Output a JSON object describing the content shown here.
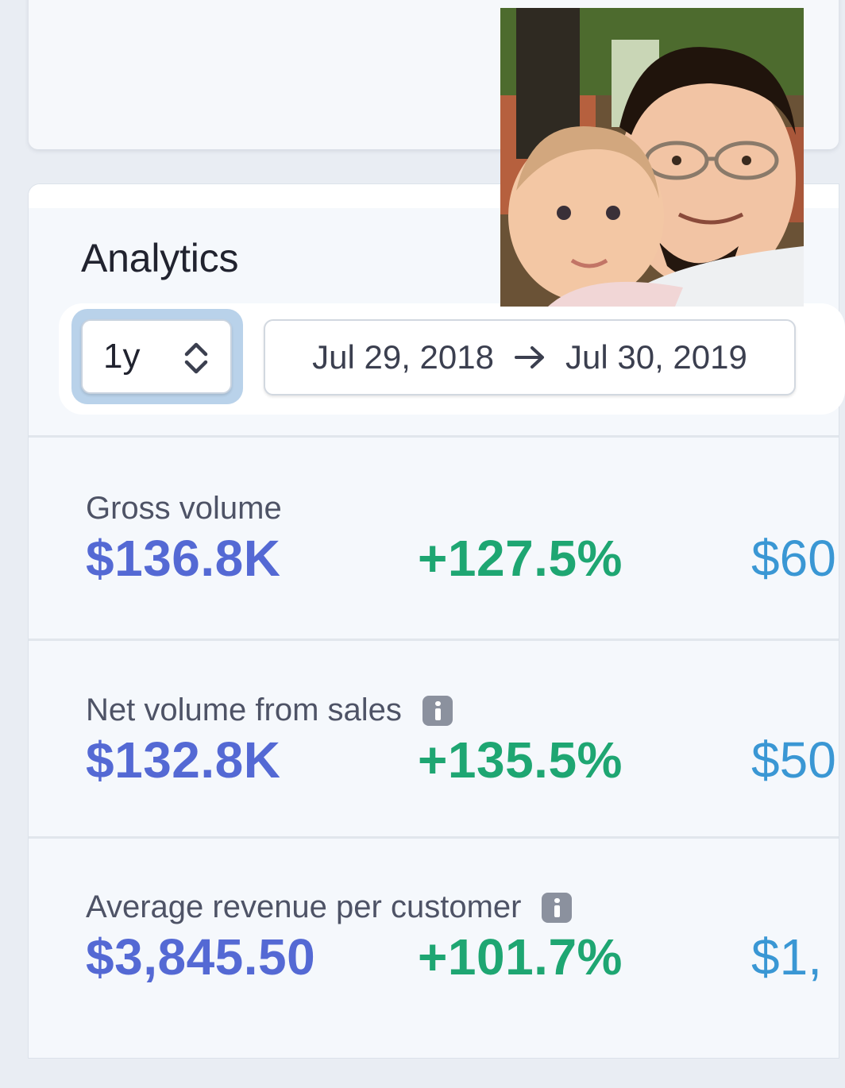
{
  "analytics": {
    "title": "Analytics",
    "range_select": {
      "value": "1y",
      "icon": "chevron-up-down-icon"
    },
    "date_range": {
      "start": "Jul 29, 2018",
      "end": "Jul 30, 2019",
      "separator_icon": "arrow-right-icon"
    },
    "metrics": [
      {
        "label": "Gross volume",
        "value": "$136.8K",
        "change": "+127.5%",
        "previous": "$60",
        "info_icon": false
      },
      {
        "label": "Net volume from sales",
        "value": "$132.8K",
        "change": "+135.5%",
        "previous": "$50",
        "info_icon": true
      },
      {
        "label": "Average revenue per customer",
        "value": "$3,845.50",
        "change": "+101.7%",
        "previous": "$1,",
        "info_icon": true
      }
    ]
  },
  "colors": {
    "value": "#5469d4",
    "change_positive": "#1ea672",
    "previous": "#3a97d4"
  },
  "user": {
    "avatar_icon": "user-avatar-photo"
  }
}
